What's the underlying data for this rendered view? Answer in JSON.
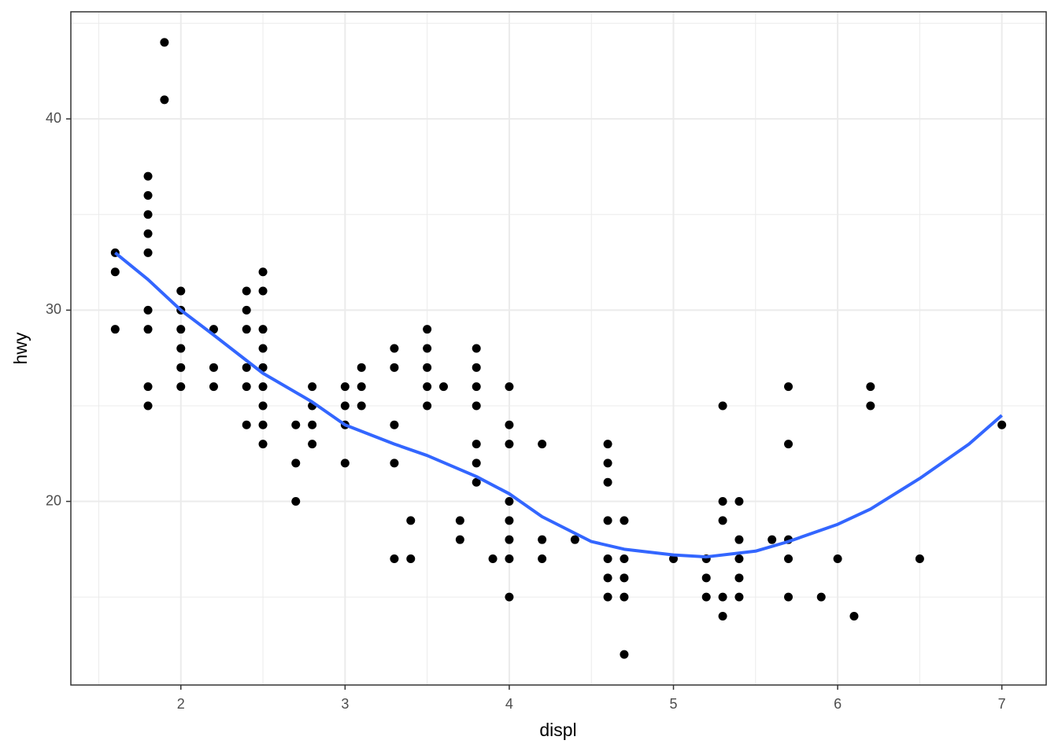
{
  "chart_data": {
    "type": "scatter",
    "x_label": "displ",
    "y_label": "hwy",
    "x": [
      1.6,
      1.6,
      1.6,
      1.8,
      1.8,
      1.8,
      1.8,
      1.8,
      1.8,
      1.8,
      1.8,
      1.8,
      1.9,
      1.9,
      2.0,
      2.0,
      2.0,
      2.0,
      2.0,
      2.0,
      2.2,
      2.2,
      2.2,
      2.4,
      2.4,
      2.4,
      2.4,
      2.4,
      2.4,
      2.5,
      2.5,
      2.5,
      2.5,
      2.5,
      2.5,
      2.5,
      2.5,
      2.5,
      2.7,
      2.7,
      2.7,
      2.8,
      2.8,
      2.8,
      2.8,
      3.0,
      3.0,
      3.0,
      3.0,
      3.1,
      3.1,
      3.1,
      3.3,
      3.3,
      3.3,
      3.3,
      3.3,
      3.4,
      3.4,
      3.5,
      3.5,
      3.5,
      3.5,
      3.5,
      3.6,
      3.7,
      3.7,
      3.8,
      3.8,
      3.8,
      3.8,
      3.8,
      3.8,
      3.8,
      3.9,
      4.0,
      4.0,
      4.0,
      4.0,
      4.0,
      4.0,
      4.0,
      4.0,
      4.2,
      4.2,
      4.2,
      4.4,
      4.6,
      4.6,
      4.6,
      4.6,
      4.6,
      4.6,
      4.6,
      4.7,
      4.7,
      4.7,
      4.7,
      4.7,
      5.0,
      5.2,
      5.2,
      5.2,
      5.3,
      5.3,
      5.3,
      5.3,
      5.3,
      5.4,
      5.4,
      5.4,
      5.4,
      5.4,
      5.6,
      5.7,
      5.7,
      5.7,
      5.7,
      5.7,
      5.9,
      6.0,
      6.1,
      6.2,
      6.2,
      6.5,
      7.0
    ],
    "values": [
      33,
      32,
      29,
      37,
      36,
      35,
      34,
      33,
      30,
      29,
      26,
      25,
      44,
      41,
      31,
      30,
      29,
      28,
      27,
      26,
      29,
      27,
      26,
      31,
      30,
      29,
      27,
      26,
      24,
      32,
      31,
      29,
      28,
      27,
      26,
      25,
      24,
      23,
      24,
      22,
      20,
      26,
      25,
      24,
      23,
      26,
      25,
      24,
      22,
      27,
      26,
      25,
      28,
      27,
      24,
      22,
      17,
      19,
      17,
      29,
      28,
      27,
      26,
      25,
      26,
      19,
      18,
      28,
      27,
      26,
      25,
      23,
      22,
      21,
      17,
      26,
      24,
      23,
      20,
      19,
      18,
      17,
      15,
      23,
      18,
      17,
      18,
      23,
      22,
      21,
      19,
      17,
      16,
      15,
      19,
      17,
      16,
      15,
      12,
      17,
      17,
      16,
      15,
      25,
      20,
      19,
      15,
      14,
      20,
      18,
      17,
      16,
      15,
      18,
      26,
      23,
      18,
      17,
      15,
      15,
      17,
      14,
      26,
      25,
      17,
      24
    ],
    "color": "#000000",
    "smooth": {
      "type": "line",
      "color": "#3366ff",
      "x": [
        1.6,
        1.8,
        2.0,
        2.2,
        2.5,
        2.8,
        3.0,
        3.3,
        3.5,
        3.8,
        4.0,
        4.2,
        4.5,
        4.7,
        5.0,
        5.2,
        5.5,
        5.7,
        6.0,
        6.2,
        6.5,
        6.8,
        7.0
      ],
      "values": [
        33.0,
        31.6,
        30.0,
        28.7,
        26.7,
        25.2,
        24.0,
        23.0,
        22.4,
        21.3,
        20.4,
        19.2,
        17.9,
        17.5,
        17.2,
        17.1,
        17.4,
        17.9,
        18.8,
        19.6,
        21.2,
        23.0,
        24.5
      ]
    },
    "xlim": [
      1.33,
      7.27
    ],
    "ylim": [
      10.4,
      45.6
    ],
    "xticks": [
      2,
      3,
      4,
      5,
      6,
      7
    ],
    "yticks": [
      20,
      30,
      40
    ],
    "xminor": [
      1.5,
      2.5,
      3.5,
      4.5,
      5.5,
      6.5
    ],
    "yminor": [
      15,
      25,
      35,
      45
    ],
    "grid": true
  }
}
